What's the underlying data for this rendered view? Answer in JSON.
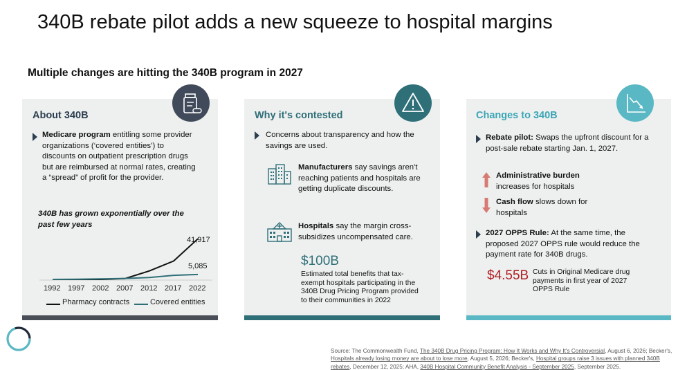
{
  "title": "340B rebate pilot adds a new squeeze to hospital margins",
  "subtitle": "Multiple changes are hitting the 340B program in 2027",
  "panels": {
    "about": {
      "heading": "About 340B",
      "icon": "pill-bottle-icon",
      "bullet_bold": "Medicare program",
      "bullet_text": " entitling some provider organizations (‘covered entities’) to discounts on outpatient prescription drugs but are reimbursed at normal rates, creating a “spread” of profit for the provider.",
      "chart_title": "340B has grown exponentially over the past few years",
      "label_pharmacy": "41,917",
      "label_entities": "5,085",
      "legend_pharmacy": "Pharmacy contracts",
      "legend_entities": "Covered entities"
    },
    "contested": {
      "heading": "Why it's contested",
      "icon": "warning-icon",
      "bullet_text": "Concerns about transparency and how the savings are used.",
      "manufacturers_bold": "Manufacturers",
      "manufacturers_text": " say savings aren't reaching patients and hospitals are getting duplicate discounts.",
      "hospitals_bold": "Hospitals",
      "hospitals_text": " say the margin cross-subsidizes uncompensated care.",
      "big_number": "$100B",
      "big_note": "Estimated total benefits that tax-exempt hospitals participating in the 340B Drug Pricing Program provided to their communities in 2022"
    },
    "changes": {
      "heading": "Changes to 340B",
      "icon": "declining-chart-icon",
      "rebate_bold": "Rebate pilot:",
      "rebate_text": " Swaps the upfront discount for a post-sale rebate starting Jan. 1, 2027.",
      "admin_bold": "Administrative burden",
      "admin_text": "increases for hospitals",
      "cash_bold": "Cash flow",
      "cash_text": " slows down for hospitals",
      "opps_bold": "2027 OPPS Rule:",
      "opps_text": " At the same time, the proposed 2027 OPPS rule would reduce the payment rate for 340B drugs.",
      "big_number": "$4.55B",
      "big_note": "Cuts in Original Medicare drug payments in first year of 2027 OPPS Rule"
    }
  },
  "chart_data": {
    "type": "line",
    "title": "340B has grown exponentially over the past few years",
    "x": [
      1992,
      1997,
      2002,
      2007,
      2012,
      2017,
      2022
    ],
    "series": [
      {
        "name": "Pharmacy contracts",
        "values": [
          0,
          0,
          0,
          900,
          8800,
          19000,
          41917
        ],
        "color": "#111111"
      },
      {
        "name": "Covered entities",
        "values": [
          0,
          200,
          500,
          1000,
          2000,
          4200,
          5085
        ],
        "color": "#2f6f78"
      }
    ],
    "ylim": [
      0,
      45000
    ],
    "grid": false,
    "legend": "bottom"
  },
  "source": {
    "prefix": "Source: The Commonwealth Fund, ",
    "link1": "The 340B Drug Pricing Program: How It Works and Why It's Controversial",
    "mid1": ", August 6, 2026; Becker's, ",
    "link2": "Hospitals already losing money are about to lose more",
    "mid2": ", August 5, 2026; Becker's, ",
    "link3": "Hospital groups raise 3 issues with planned 340B rebates",
    "mid3": ", December 12, 2025; AHA, ",
    "link4": "340B Hospital Community Benefit Analysis - September 2025",
    "suffix": ", September 2025."
  },
  "colors": {
    "dark": "#4a4f57",
    "teal": "#2f6f78",
    "light_teal": "#5ab8c4",
    "red": "#b01e23",
    "arrow_red": "#d67b73"
  }
}
